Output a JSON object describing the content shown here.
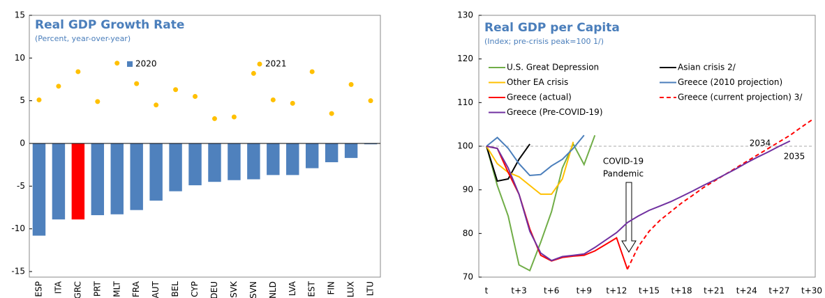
{
  "chart_data": [
    {
      "type": "bar",
      "title": "Real GDP Growth Rate",
      "subtitle": "(Percent, year-over-year)",
      "categories": [
        "ESP",
        "ITA",
        "GRC",
        "PRT",
        "MLT",
        "FRA",
        "AUT",
        "BEL",
        "CYP",
        "DEU",
        "SVK",
        "SVN",
        "NLD",
        "LVA",
        "EST",
        "FIN",
        "LUX",
        "LTU"
      ],
      "series": [
        {
          "name": "2020",
          "kind": "bar",
          "color": "#4f81bd",
          "colors": [
            "#4f81bd",
            "#4f81bd",
            "#ff0000",
            "#4f81bd",
            "#4f81bd",
            "#4f81bd",
            "#4f81bd",
            "#4f81bd",
            "#4f81bd",
            "#4f81bd",
            "#4f81bd",
            "#4f81bd",
            "#4f81bd",
            "#4f81bd",
            "#4f81bd",
            "#4f81bd",
            "#4f81bd",
            "#4f81bd"
          ],
          "values": [
            -10.8,
            -8.9,
            -8.9,
            -8.4,
            -8.3,
            -7.8,
            -6.7,
            -5.6,
            -4.9,
            -4.5,
            -4.3,
            -4.2,
            -3.7,
            -3.7,
            -2.9,
            -2.2,
            -1.7,
            -0.1
          ]
        },
        {
          "name": "2021",
          "kind": "scatter",
          "color": "#ffc000",
          "values": [
            5.1,
            6.7,
            8.4,
            4.9,
            9.4,
            7.0,
            4.5,
            6.3,
            5.5,
            2.9,
            3.1,
            8.2,
            5.1,
            4.7,
            8.4,
            3.5,
            6.9,
            5.0
          ]
        }
      ],
      "ylim": [
        -15,
        15
      ],
      "yticks": [
        -15,
        -10,
        -5,
        0,
        5,
        10,
        15
      ]
    },
    {
      "type": "line",
      "title": "Real GDP per Capita",
      "subtitle": "(Index; pre-crisis peak=100 1/)",
      "categories": [
        "t",
        null,
        null,
        "t+3",
        null,
        null,
        "t+6",
        null,
        null,
        "t+9",
        null,
        null,
        "t+12",
        null,
        null,
        "t+15",
        null,
        null,
        "t+18",
        null,
        null,
        "t+21",
        null,
        null,
        "t+24",
        null,
        null,
        "t+27",
        null,
        null,
        "t+30"
      ],
      "series": [
        {
          "name": "U.S. Great Depression",
          "color": "#70ad47",
          "values": [
            100,
            91,
            84,
            72.8,
            71.5,
            78,
            85,
            95,
            100.5,
            95.8,
            102.5,
            null,
            null,
            null,
            null,
            null,
            null,
            null,
            null,
            null,
            null,
            null,
            null,
            null,
            null,
            null,
            null,
            null,
            null,
            null,
            null
          ]
        },
        {
          "name": "Asian crisis 2/",
          "color": "#000000",
          "values": [
            100,
            92,
            92.5,
            97,
            100.5,
            null,
            null,
            null,
            null,
            null,
            null,
            null,
            null,
            null,
            null,
            null,
            null,
            null,
            null,
            null,
            null,
            null,
            null,
            null,
            null,
            null,
            null,
            null,
            null,
            null,
            null
          ]
        },
        {
          "name": "Other EA crisis",
          "color": "#ffc000",
          "values": [
            100,
            96,
            94,
            93,
            91,
            89,
            89,
            92.5,
            101,
            null,
            null,
            null,
            null,
            null,
            null,
            null,
            null,
            null,
            null,
            null,
            null,
            null,
            null,
            null,
            null,
            null,
            null,
            null,
            null,
            null,
            null
          ]
        },
        {
          "name": "Greece (2010 projection)",
          "color": "#4a7ebb",
          "values": [
            100,
            102,
            99.5,
            96,
            93.3,
            93.5,
            95.5,
            97,
            99.5,
            102.5,
            null,
            null,
            null,
            null,
            null,
            null,
            null,
            null,
            null,
            null,
            null,
            null,
            null,
            null,
            null,
            null,
            null,
            null,
            null,
            null,
            null
          ]
        },
        {
          "name": "Greece (actual)",
          "color": "#ff0000",
          "values": [
            100,
            99.5,
            94,
            89,
            81,
            75,
            73.7,
            74.5,
            74.8,
            75,
            76,
            77.5,
            79,
            71.8,
            null,
            null,
            null,
            null,
            null,
            null,
            null,
            null,
            null,
            null,
            null,
            null,
            null,
            null,
            null,
            null,
            null
          ]
        },
        {
          "name": "Greece (current projection) 3/",
          "color": "#ff0000",
          "dashed": true,
          "values": [
            null,
            null,
            null,
            null,
            null,
            null,
            null,
            null,
            null,
            null,
            null,
            null,
            null,
            71.8,
            77,
            80.5,
            83,
            85,
            87,
            88.7,
            90.5,
            92,
            93.5,
            95,
            96.5,
            98,
            99.5,
            101,
            102.5,
            104.3,
            106
          ]
        },
        {
          "name": "Greece (Pre-COVID-19)",
          "color": "#7030a0",
          "values": [
            100,
            99.5,
            95,
            89,
            80.5,
            75.5,
            73.8,
            74.7,
            75,
            75.3,
            76.8,
            78.5,
            80.2,
            82.5,
            84,
            85.3,
            86.3,
            87.3,
            88.5,
            89.7,
            91,
            92.2,
            93.5,
            94.8,
            96.2,
            97.5,
            98.7,
            100,
            101.2,
            null,
            null
          ]
        }
      ],
      "reference_line": 100,
      "annotations": [
        "COVID-19",
        "Pandemic",
        "2034",
        "2035"
      ],
      "ylim": [
        70,
        130
      ],
      "yticks": [
        70,
        80,
        90,
        100,
        110,
        120,
        130
      ]
    }
  ]
}
